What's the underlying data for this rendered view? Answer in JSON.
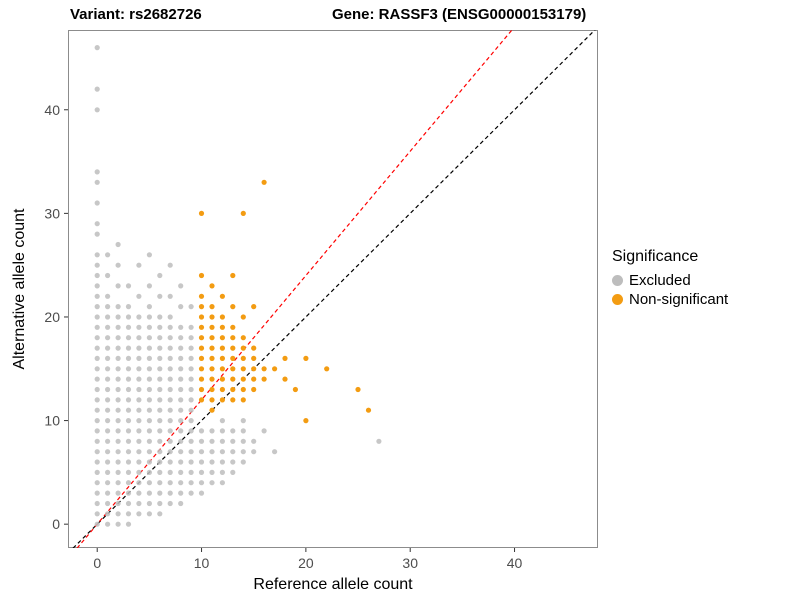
{
  "chart_data": {
    "type": "scatter",
    "title_left": "Variant: rs2682726",
    "title_right": "Gene: RASSF3 (ENSG00000153179)",
    "xlabel": "Reference allele count",
    "ylabel": "Alternative allele count",
    "xlim": [
      -2.8,
      48.0
    ],
    "ylim": [
      -2.3,
      47.7
    ],
    "x_ticks": [
      0,
      10,
      20,
      30,
      40
    ],
    "y_ticks": [
      0,
      10,
      20,
      30,
      40
    ],
    "grid": false,
    "panel_border_color": "#8c8c8c",
    "legend": {
      "title": "Significance",
      "position": "right",
      "entries": [
        {
          "label": "Excluded",
          "color": "#bdbdbd"
        },
        {
          "label": "Non-significant",
          "color": "#f39c12"
        }
      ]
    },
    "lines": [
      {
        "name": "identity-line",
        "slope": 1.0,
        "intercept": 0,
        "color": "#000000",
        "style": "dashed"
      },
      {
        "name": "expected-ratio-line",
        "slope": 1.2,
        "intercept": 0,
        "color": "#ff0000",
        "style": "dashed"
      }
    ],
    "series": [
      {
        "name": "Excluded",
        "color": "#bdbdbd",
        "columns": [
          {
            "x": 0,
            "ys": [
              0,
              1,
              2,
              3,
              4,
              5,
              6,
              7,
              8,
              9,
              10,
              11,
              12,
              13,
              14,
              15,
              16,
              17,
              18,
              19,
              20,
              21,
              22,
              23,
              24,
              25,
              26,
              28,
              29,
              31,
              33,
              34,
              40,
              42,
              46
            ]
          },
          {
            "x": 1,
            "ys": [
              0,
              1,
              2,
              3,
              4,
              5,
              6,
              7,
              8,
              9,
              10,
              11,
              12,
              13,
              14,
              15,
              16,
              17,
              18,
              19,
              20,
              21,
              22,
              24,
              26
            ]
          },
          {
            "x": 2,
            "ys": [
              0,
              1,
              2,
              3,
              4,
              5,
              6,
              7,
              8,
              9,
              10,
              11,
              12,
              13,
              14,
              15,
              16,
              17,
              18,
              19,
              20,
              21,
              23,
              25,
              27
            ]
          },
          {
            "x": 3,
            "ys": [
              0,
              1,
              2,
              3,
              4,
              5,
              6,
              7,
              8,
              9,
              10,
              11,
              12,
              13,
              14,
              15,
              16,
              17,
              18,
              19,
              20,
              21,
              23
            ]
          },
          {
            "x": 4,
            "ys": [
              1,
              2,
              3,
              4,
              5,
              6,
              7,
              8,
              9,
              10,
              11,
              12,
              13,
              14,
              15,
              16,
              17,
              18,
              19,
              20,
              22,
              25
            ]
          },
          {
            "x": 5,
            "ys": [
              1,
              2,
              3,
              4,
              5,
              6,
              7,
              8,
              9,
              10,
              11,
              12,
              13,
              14,
              15,
              16,
              17,
              18,
              19,
              20,
              21,
              23,
              26
            ]
          },
          {
            "x": 6,
            "ys": [
              1,
              2,
              3,
              4,
              5,
              6,
              7,
              8,
              9,
              10,
              11,
              12,
              13,
              14,
              15,
              16,
              17,
              18,
              19,
              20,
              22,
              24
            ]
          },
          {
            "x": 7,
            "ys": [
              2,
              3,
              4,
              5,
              6,
              7,
              8,
              9,
              10,
              11,
              12,
              13,
              14,
              15,
              16,
              17,
              18,
              19,
              20,
              22,
              25
            ]
          },
          {
            "x": 8,
            "ys": [
              2,
              3,
              4,
              5,
              6,
              7,
              8,
              9,
              10,
              11,
              12,
              13,
              14,
              15,
              16,
              17,
              18,
              19,
              21,
              23
            ]
          },
          {
            "x": 9,
            "ys": [
              3,
              4,
              5,
              6,
              7,
              8,
              9,
              10,
              11,
              12,
              13,
              14,
              15,
              16,
              17,
              18,
              19,
              21
            ]
          },
          {
            "x": 10,
            "ys": [
              3,
              4,
              5,
              6,
              7,
              8,
              9
            ]
          },
          {
            "x": 11,
            "ys": [
              4,
              5,
              6,
              7,
              8,
              9
            ]
          },
          {
            "x": 12,
            "ys": [
              4,
              5,
              6,
              7,
              8,
              9,
              10
            ]
          },
          {
            "x": 13,
            "ys": [
              5,
              6,
              7,
              8,
              9
            ]
          },
          {
            "x": 14,
            "ys": [
              6,
              7,
              8,
              9,
              10
            ]
          },
          {
            "x": 15,
            "ys": [
              7,
              8
            ]
          },
          {
            "x": 16,
            "ys": [
              9
            ]
          },
          {
            "x": 17,
            "ys": [
              7
            ]
          },
          {
            "x": 27,
            "ys": [
              8
            ]
          }
        ]
      },
      {
        "name": "Non-significant",
        "color": "#f39c12",
        "columns": [
          {
            "x": 10,
            "ys": [
              12,
              13,
              14,
              15,
              16,
              17,
              18,
              19,
              20,
              21,
              22,
              24,
              30
            ]
          },
          {
            "x": 11,
            "ys": [
              11,
              12,
              13,
              14,
              15,
              16,
              17,
              18,
              19,
              20,
              21,
              23
            ]
          },
          {
            "x": 12,
            "ys": [
              12,
              13,
              14,
              15,
              16,
              17,
              18,
              19,
              20,
              22
            ]
          },
          {
            "x": 13,
            "ys": [
              12,
              13,
              14,
              15,
              16,
              17,
              18,
              19,
              21,
              24
            ]
          },
          {
            "x": 14,
            "ys": [
              12,
              13,
              14,
              15,
              16,
              17,
              18,
              20,
              30
            ]
          },
          {
            "x": 15,
            "ys": [
              13,
              14,
              15,
              16,
              17,
              21
            ]
          },
          {
            "x": 16,
            "ys": [
              14,
              15,
              33
            ]
          },
          {
            "x": 17,
            "ys": [
              15
            ]
          },
          {
            "x": 18,
            "ys": [
              14,
              16
            ]
          },
          {
            "x": 19,
            "ys": [
              13
            ]
          },
          {
            "x": 20,
            "ys": [
              10,
              16
            ]
          },
          {
            "x": 22,
            "ys": [
              15
            ]
          },
          {
            "x": 25,
            "ys": [
              13
            ]
          },
          {
            "x": 26,
            "ys": [
              11
            ]
          }
        ]
      }
    ]
  }
}
